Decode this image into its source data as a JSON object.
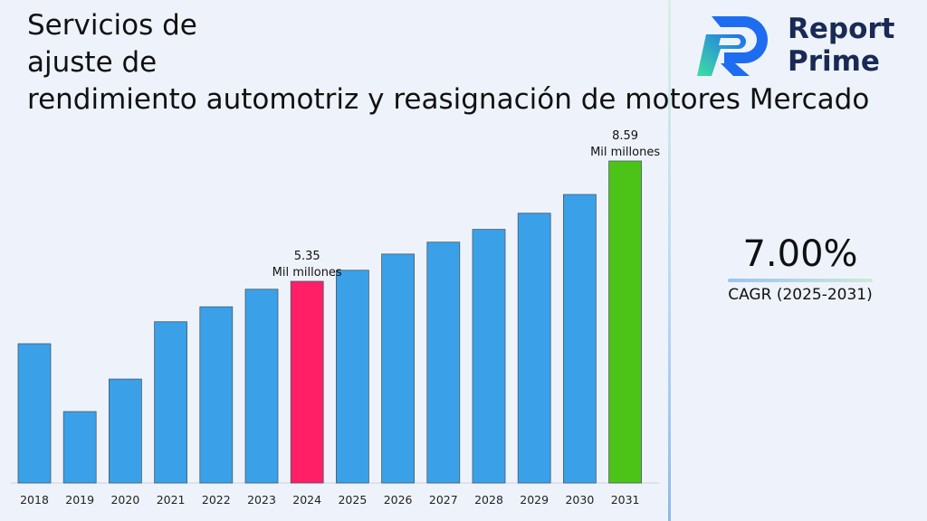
{
  "title": {
    "line1": "Servicios de",
    "line2": "ajuste de",
    "line3": "rendimiento automotriz y reasignación de motores Mercado"
  },
  "brand": {
    "name_line1": "Report",
    "name_line2": "Prime"
  },
  "cagr": {
    "value": "7.00%",
    "label": "CAGR (2025-2031)"
  },
  "colors": {
    "bar_default": "#3aa0e8",
    "bar_highlight_2024": "#ff1f66",
    "bar_highlight_2031": "#4cc417",
    "background": "#eef3fb"
  },
  "chart_data": {
    "type": "bar",
    "categories": [
      "2018",
      "2019",
      "2020",
      "2021",
      "2022",
      "2023",
      "2024",
      "2025",
      "2026",
      "2027",
      "2028",
      "2029",
      "2030",
      "2031"
    ],
    "values": [
      4.64,
      3.93,
      4.27,
      4.89,
      5.06,
      5.26,
      5.35,
      5.48,
      5.67,
      5.81,
      5.96,
      6.15,
      6.37,
      8.59
    ],
    "highlights": {
      "2024": "bar_highlight_2024",
      "2031": "bar_highlight_2031"
    },
    "annotations": [
      {
        "category": "2024",
        "value": "5.35",
        "unit": "Mil millones"
      },
      {
        "category": "2031",
        "value": "8.59",
        "unit": "Mil millones"
      }
    ],
    "title": "",
    "xlabel": "",
    "ylabel": "",
    "grid": false,
    "legend": "none"
  }
}
